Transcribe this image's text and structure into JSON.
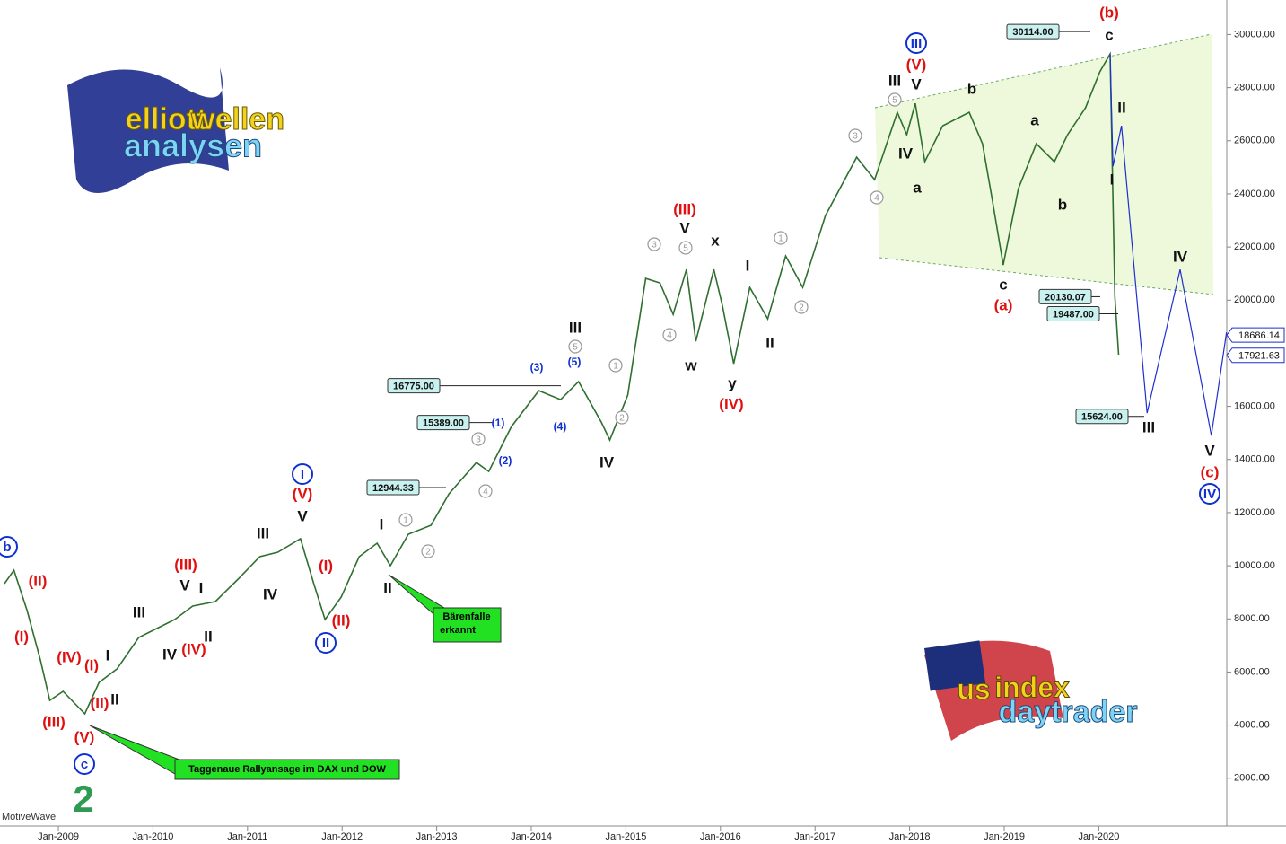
{
  "chart_data": {
    "type": "line",
    "color": "#2f6f2f",
    "x": [
      2008.43,
      2008.53,
      2008.67,
      2008.81,
      2008.91,
      2009.05,
      2009.28,
      2009.43,
      2009.62,
      2009.85,
      2010.04,
      2010.23,
      2010.42,
      2010.66,
      2010.9,
      2011.13,
      2011.32,
      2011.56,
      2011.7,
      2011.82,
      2011.99,
      2012.18,
      2012.37,
      2012.51,
      2012.7,
      2012.94,
      2013.13,
      2013.42,
      2013.55,
      2013.79,
      2014.08,
      2014.31,
      2014.5,
      2014.74,
      2014.83,
      2015.02,
      2015.21,
      2015.36,
      2015.5,
      2015.64,
      2015.74,
      2015.93,
      2016.02,
      2016.14,
      2016.31,
      2016.5,
      2016.69,
      2016.87,
      2017.11,
      2017.44,
      2017.63,
      2017.87,
      2017.97,
      2018.06,
      2018.16,
      2018.35,
      2018.63,
      2018.77,
      2018.87,
      2018.99,
      2019.15,
      2019.34,
      2019.53,
      2019.67,
      2019.86,
      2020.01,
      2020.12,
      2020.17,
      2020.21
    ],
    "values": [
      9326,
      9830,
      8312,
      6453,
      4932,
      5270,
      4425,
      5608,
      6115,
      7298,
      7636,
      7974,
      8481,
      8650,
      9495,
      10340,
      10509,
      11016,
      9326,
      7974,
      8819,
      10340,
      10847,
      10002,
      11185,
      11523,
      12706,
      13889,
      13551,
      15241,
      16593,
      16255,
      16931,
      15410,
      14734,
      16424,
      20818,
      20649,
      19466,
      21156,
      18452,
      21156,
      19804,
      17607,
      20480,
      19297,
      21663,
      20480,
      23184,
      25381,
      24536,
      27071,
      26226,
      27409,
      25212,
      26564,
      27071,
      25888,
      23860,
      21325,
      24198,
      25888,
      25212,
      26226,
      27240,
      28592,
      29268,
      20142,
      17945
    ],
    "projection": {
      "color": "#1f2fd0",
      "x": [
        2020.12,
        2020.15,
        2020.24,
        2020.51,
        2020.86,
        2021.19,
        2021.35
      ],
      "values": [
        29268,
        25043,
        26564,
        15748,
        21156,
        14903,
        18790
      ]
    },
    "xlim": [
      2008.383,
      2021.353
    ],
    "xticks": [
      {
        "value": 2009,
        "label": "Jan-2009"
      },
      {
        "value": 2010,
        "label": "Jan-2010"
      },
      {
        "value": 2011,
        "label": "Jan-2011"
      },
      {
        "value": 2012,
        "label": "Jan-2012"
      },
      {
        "value": 2013,
        "label": "Jan-2013"
      },
      {
        "value": 2014,
        "label": "Jan-2014"
      },
      {
        "value": 2015,
        "label": "Jan-2015"
      },
      {
        "value": 2016,
        "label": "Jan-2016"
      },
      {
        "value": 2017,
        "label": "Jan-2017"
      },
      {
        "value": 2018,
        "label": "Jan-2018"
      },
      {
        "value": 2019,
        "label": "Jan-2019"
      },
      {
        "value": 2020,
        "label": "Jan-2020"
      }
    ],
    "ylim": [
      200,
      31300
    ],
    "yticks": [
      {
        "value": 2000,
        "label": "2000.00"
      },
      {
        "value": 4000,
        "label": "4000.00"
      },
      {
        "value": 6000,
        "label": "6000.00"
      },
      {
        "value": 8000,
        "label": "8000.00"
      },
      {
        "value": 10000,
        "label": "10000.00"
      },
      {
        "value": 12000,
        "label": "12000.00"
      },
      {
        "value": 14000,
        "label": "14000.00"
      },
      {
        "value": 16000,
        "label": "16000.00"
      },
      {
        "value": 18000,
        "label": "18000.00"
      },
      {
        "value": 20000,
        "label": "20000.00"
      },
      {
        "value": 22000,
        "label": "22000.00"
      },
      {
        "value": 24000,
        "label": "24000.00"
      },
      {
        "value": 26000,
        "label": "26000.00"
      },
      {
        "value": 28000,
        "label": "28000.00"
      },
      {
        "value": 30000,
        "label": "30000.00"
      }
    ],
    "price_labels": [
      {
        "value": 30114,
        "label": "30114.00"
      },
      {
        "value": 20130.07,
        "label": "20130.07"
      },
      {
        "value": 19487,
        "label": "19487.00"
      },
      {
        "value": 16775,
        "label": "16775.00"
      },
      {
        "value": 15389,
        "label": "15389.00"
      },
      {
        "value": 12944.33,
        "label": "12944.33"
      },
      {
        "value": 15624,
        "label": "15624.00"
      }
    ],
    "axis_price_labels": [
      {
        "value": 18686.14,
        "label": "18686.14"
      },
      {
        "value": 17921.63,
        "label": "17921.63"
      }
    ],
    "wave_labels": [
      {
        "text": "b",
        "color": "#1030d0",
        "circled": true
      },
      {
        "text": "(II)",
        "color": "#e01010"
      },
      {
        "text": "(I)",
        "color": "#e01010"
      },
      {
        "text": "(IV)",
        "color": "#e01010"
      },
      {
        "text": "(I)",
        "color": "#e01010"
      },
      {
        "text": "I",
        "color": "#111111"
      },
      {
        "text": "(III)",
        "color": "#e01010"
      },
      {
        "text": "(II)",
        "color": "#e01010"
      },
      {
        "text": "II",
        "color": "#111111"
      },
      {
        "text": "(V)",
        "color": "#e01010"
      },
      {
        "text": "c",
        "color": "#1030d0",
        "circled": true
      },
      {
        "text": "III",
        "color": "#111111"
      },
      {
        "text": "V",
        "color": "#111111"
      },
      {
        "text": "I",
        "color": "#111111"
      },
      {
        "text": "(III)",
        "color": "#e01010"
      },
      {
        "text": "(IV)",
        "color": "#e01010"
      },
      {
        "text": "IV",
        "color": "#111111"
      },
      {
        "text": "II",
        "color": "#111111"
      },
      {
        "text": "III",
        "color": "#111111"
      },
      {
        "text": "IV",
        "color": "#111111"
      },
      {
        "text": "I",
        "color": "#1030d0",
        "circled": true
      },
      {
        "text": "(V)",
        "color": "#e01010"
      },
      {
        "text": "V",
        "color": "#111111"
      },
      {
        "text": "(I)",
        "color": "#e01010"
      },
      {
        "text": "(II)",
        "color": "#e01010"
      },
      {
        "text": "II",
        "color": "#1030d0",
        "circled": true
      },
      {
        "text": "I",
        "color": "#111111"
      },
      {
        "text": "II",
        "color": "#111111"
      },
      {
        "text": "1",
        "color": "#999999",
        "circled": true
      },
      {
        "text": "2",
        "color": "#999999",
        "circled": true
      },
      {
        "text": "3",
        "color": "#999999",
        "circled": true
      },
      {
        "text": "4",
        "color": "#999999",
        "circled": true
      },
      {
        "text": "(1)",
        "color": "#1030d0"
      },
      {
        "text": "(2)",
        "color": "#1030d0"
      },
      {
        "text": "(3)",
        "color": "#1030d0"
      },
      {
        "text": "(4)",
        "color": "#1030d0"
      },
      {
        "text": "(5)",
        "color": "#1030d0"
      },
      {
        "text": "III",
        "color": "#111111"
      },
      {
        "text": "5",
        "color": "#999999",
        "circled": true
      },
      {
        "text": "1",
        "color": "#999999",
        "circled": true
      },
      {
        "text": "2",
        "color": "#999999",
        "circled": true
      },
      {
        "text": "IV",
        "color": "#111111"
      },
      {
        "text": "(III)",
        "color": "#e01010"
      },
      {
        "text": "V",
        "color": "#111111"
      },
      {
        "text": "3",
        "color": "#999999",
        "circled": true
      },
      {
        "text": "5",
        "color": "#999999",
        "circled": true
      },
      {
        "text": "4",
        "color": "#999999",
        "circled": true
      },
      {
        "text": "w",
        "color": "#111111"
      },
      {
        "text": "x",
        "color": "#111111"
      },
      {
        "text": "y",
        "color": "#111111"
      },
      {
        "text": "(IV)",
        "color": "#e01010"
      },
      {
        "text": "I",
        "color": "#111111"
      },
      {
        "text": "II",
        "color": "#111111"
      },
      {
        "text": "1",
        "color": "#999999",
        "circled": true
      },
      {
        "text": "2",
        "color": "#999999",
        "circled": true
      },
      {
        "text": "3",
        "color": "#999999",
        "circled": true
      },
      {
        "text": "4",
        "color": "#999999",
        "circled": true
      },
      {
        "text": "5",
        "color": "#999999",
        "circled": true
      },
      {
        "text": "III",
        "color": "#111111"
      },
      {
        "text": "V",
        "color": "#111111"
      },
      {
        "text": "(V)",
        "color": "#e01010"
      },
      {
        "text": "III",
        "color": "#1030d0",
        "circled": true
      },
      {
        "text": "IV",
        "color": "#111111"
      },
      {
        "text": "a",
        "color": "#111111"
      },
      {
        "text": "b",
        "color": "#111111"
      },
      {
        "text": "c",
        "color": "#111111"
      },
      {
        "text": "(a)",
        "color": "#e01010"
      },
      {
        "text": "a",
        "color": "#111111"
      },
      {
        "text": "b",
        "color": "#111111"
      },
      {
        "text": "(b)",
        "color": "#e01010"
      },
      {
        "text": "c",
        "color": "#111111"
      },
      {
        "text": "II",
        "color": "#111111"
      },
      {
        "text": "I",
        "color": "#111111"
      },
      {
        "text": "IV",
        "color": "#111111"
      },
      {
        "text": "III",
        "color": "#111111"
      },
      {
        "text": "V",
        "color": "#111111"
      },
      {
        "text": "(c)",
        "color": "#e01010"
      },
      {
        "text": "IV",
        "color": "#1030d0",
        "circled": true
      }
    ],
    "callouts": [
      [
        "Bärenfalle",
        "erkannt"
      ],
      [
        "Taggenaue Rallyansage im DAX und DOW"
      ]
    ],
    "big_label": "2",
    "watermark": "MotiveWave",
    "logos": [
      [
        "elliott",
        "wellen",
        "analysen"
      ],
      [
        "us",
        "index",
        "daytrader"
      ]
    ]
  }
}
